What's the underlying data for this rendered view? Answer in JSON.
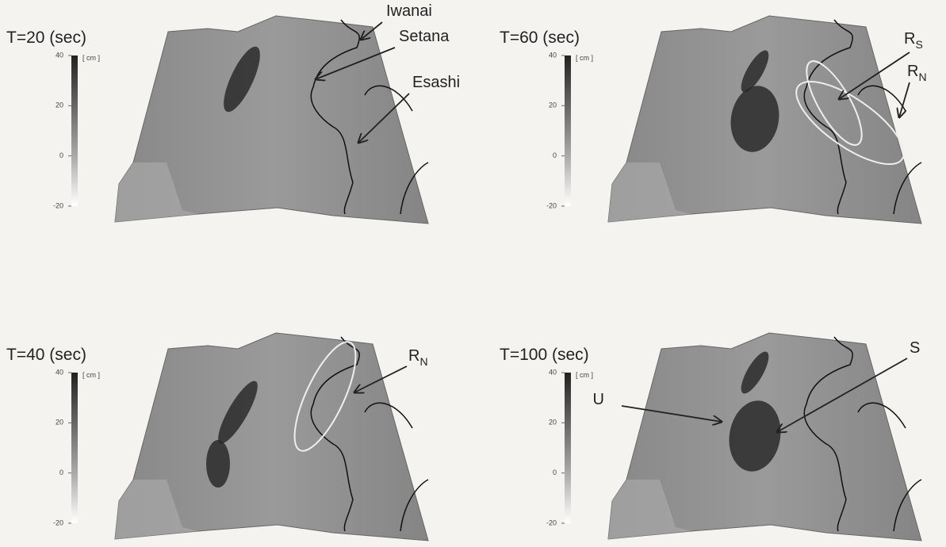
{
  "panels": [
    {
      "title": "T=20 (sec)",
      "colorbar": {
        "unit": "[ cm ]",
        "lim": [
          -20,
          40
        ],
        "ticks": [
          40,
          20,
          0,
          -20
        ]
      },
      "annotations": [
        {
          "text": "Iwanai"
        },
        {
          "text": "Setana"
        },
        {
          "text": "Esashi"
        }
      ]
    },
    {
      "title": "T=60 (sec)",
      "colorbar": {
        "unit": "[ cm ]",
        "lim": [
          -20,
          40
        ],
        "ticks": [
          40,
          20,
          0,
          -20
        ]
      },
      "annotations": [
        {
          "text": "R",
          "sub": "S"
        },
        {
          "text": "R",
          "sub": "N"
        }
      ]
    },
    {
      "title": "T=40 (sec)",
      "colorbar": {
        "unit": "[ cm ]",
        "lim": [
          -20,
          40
        ],
        "ticks": [
          40,
          20,
          0,
          -20
        ]
      },
      "annotations": [
        {
          "text": "R",
          "sub": "N"
        }
      ]
    },
    {
      "title": "T=100 (sec)",
      "colorbar": {
        "unit": "[ cm ]",
        "lim": [
          -20,
          40
        ],
        "ticks": [
          40,
          20,
          0,
          -20
        ]
      },
      "annotations": [
        {
          "text": "U"
        },
        {
          "text": "S"
        }
      ]
    }
  ]
}
